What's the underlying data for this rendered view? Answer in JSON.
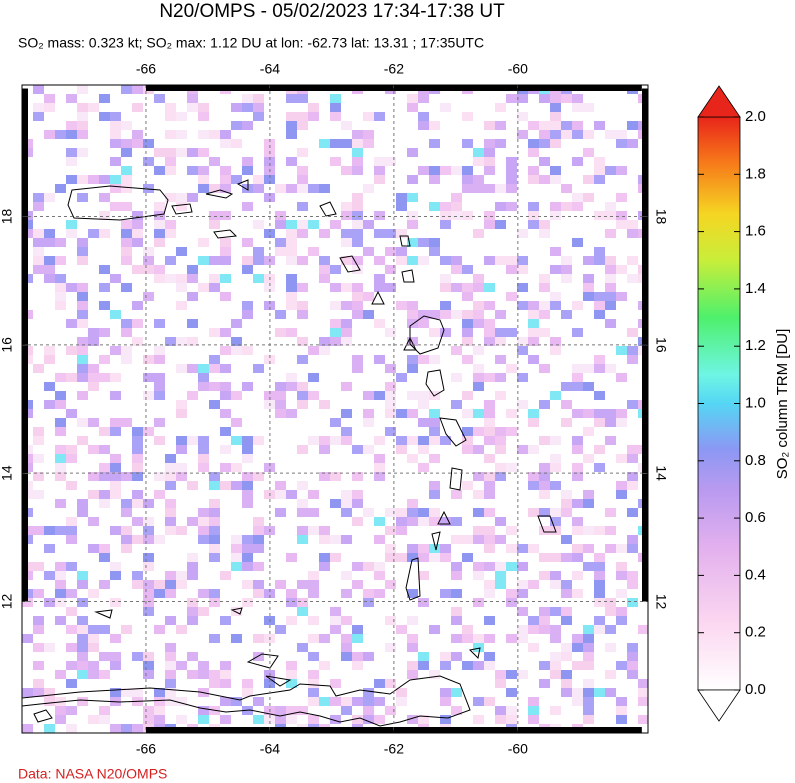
{
  "chart_data": {
    "type": "map",
    "title": "N20/OMPS - 05/02/2023 17:34-17:38 UT",
    "subtitle": "SO₂ mass: 0.323 kt; SO₂ max: 1.12 DU at lon: -62.73 lat: 13.31 ; 17:35UTC",
    "xlim": [
      -68,
      -57.9
    ],
    "ylim": [
      9.95,
      20.05
    ],
    "xticks": [
      -66,
      -64,
      -62,
      -60
    ],
    "yticks": [
      12,
      14,
      16,
      18
    ],
    "grid": true,
    "colorbar": {
      "label": "SO₂ column TRM [DU]",
      "lim": [
        0,
        2
      ],
      "ticks": [
        {
          "value": 0,
          "label": "0.0"
        },
        {
          "value": 0.2,
          "label": "0.2"
        },
        {
          "value": 0.4,
          "label": "0.4"
        },
        {
          "value": 0.6,
          "label": "0.6"
        },
        {
          "value": 0.8,
          "label": "0.8"
        },
        {
          "value": 1,
          "label": "1.0"
        },
        {
          "value": 1.2,
          "label": "1.2"
        },
        {
          "value": 1.4,
          "label": "1.4"
        },
        {
          "value": 1.6,
          "label": "1.6"
        },
        {
          "value": 1.8,
          "label": "1.8"
        },
        {
          "value": 2,
          "label": "2.0"
        }
      ]
    },
    "source": "Data: NASA N20/OMPS"
  }
}
